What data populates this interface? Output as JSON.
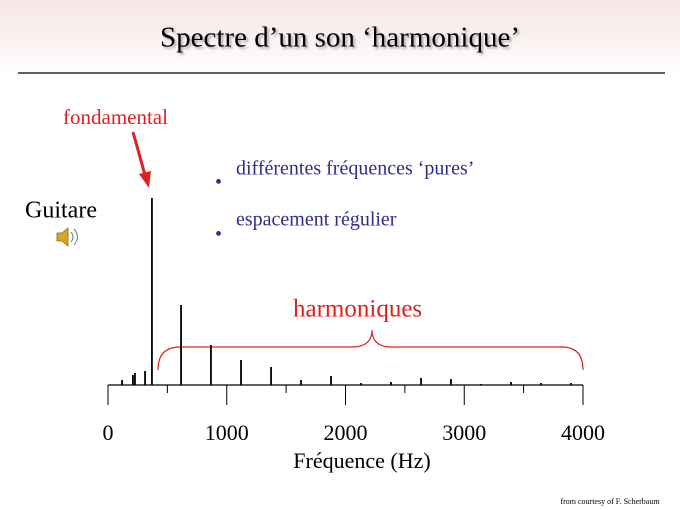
{
  "chart_data": {
    "type": "stem",
    "title": "Spectre d’un son ‘harmonique’",
    "bullets": [
      "différentes fréquences ‘pures’",
      "espacement régulier"
    ],
    "instrument": "Guitare",
    "annotations": {
      "fundamental": "fondamental",
      "harmonics": "harmoniques"
    },
    "xlabel": "Fréquence (Hz)",
    "credit": "from courtesy of F. Scherbaum",
    "x": [
      118,
      210,
      227,
      312,
      370,
      615,
      867,
      1120,
      1373,
      1625,
      1878,
      2131,
      2383,
      2636,
      2888,
      3141,
      3394,
      3646,
      3899
    ],
    "values": [
      5,
      10,
      12,
      14,
      187,
      80,
      40,
      25,
      18,
      5,
      9,
      2,
      3,
      7,
      6,
      1,
      3,
      2,
      2
    ],
    "color": "#000000",
    "annotation_color": "#e02020",
    "bullet_color": "#2e2e8a",
    "xlim": [
      0,
      4000
    ],
    "xticks": [
      0,
      1000,
      2000,
      3000,
      4000
    ],
    "xminorticks": [
      500,
      1500,
      2500,
      3500
    ],
    "ylim": [
      0,
      200
    ]
  }
}
